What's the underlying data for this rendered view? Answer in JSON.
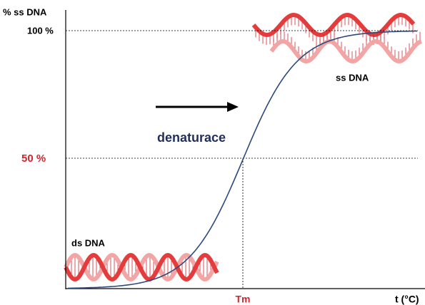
{
  "axes": {
    "y_label": "% ss DNA",
    "x_label": "t (°C)",
    "y_marks": [
      "100 %",
      "50 %"
    ],
    "x_mark": "Tm"
  },
  "annotations": {
    "arrow_label": "denaturace",
    "start_label": "ds DNA",
    "end_label": "ss DNA"
  }
}
